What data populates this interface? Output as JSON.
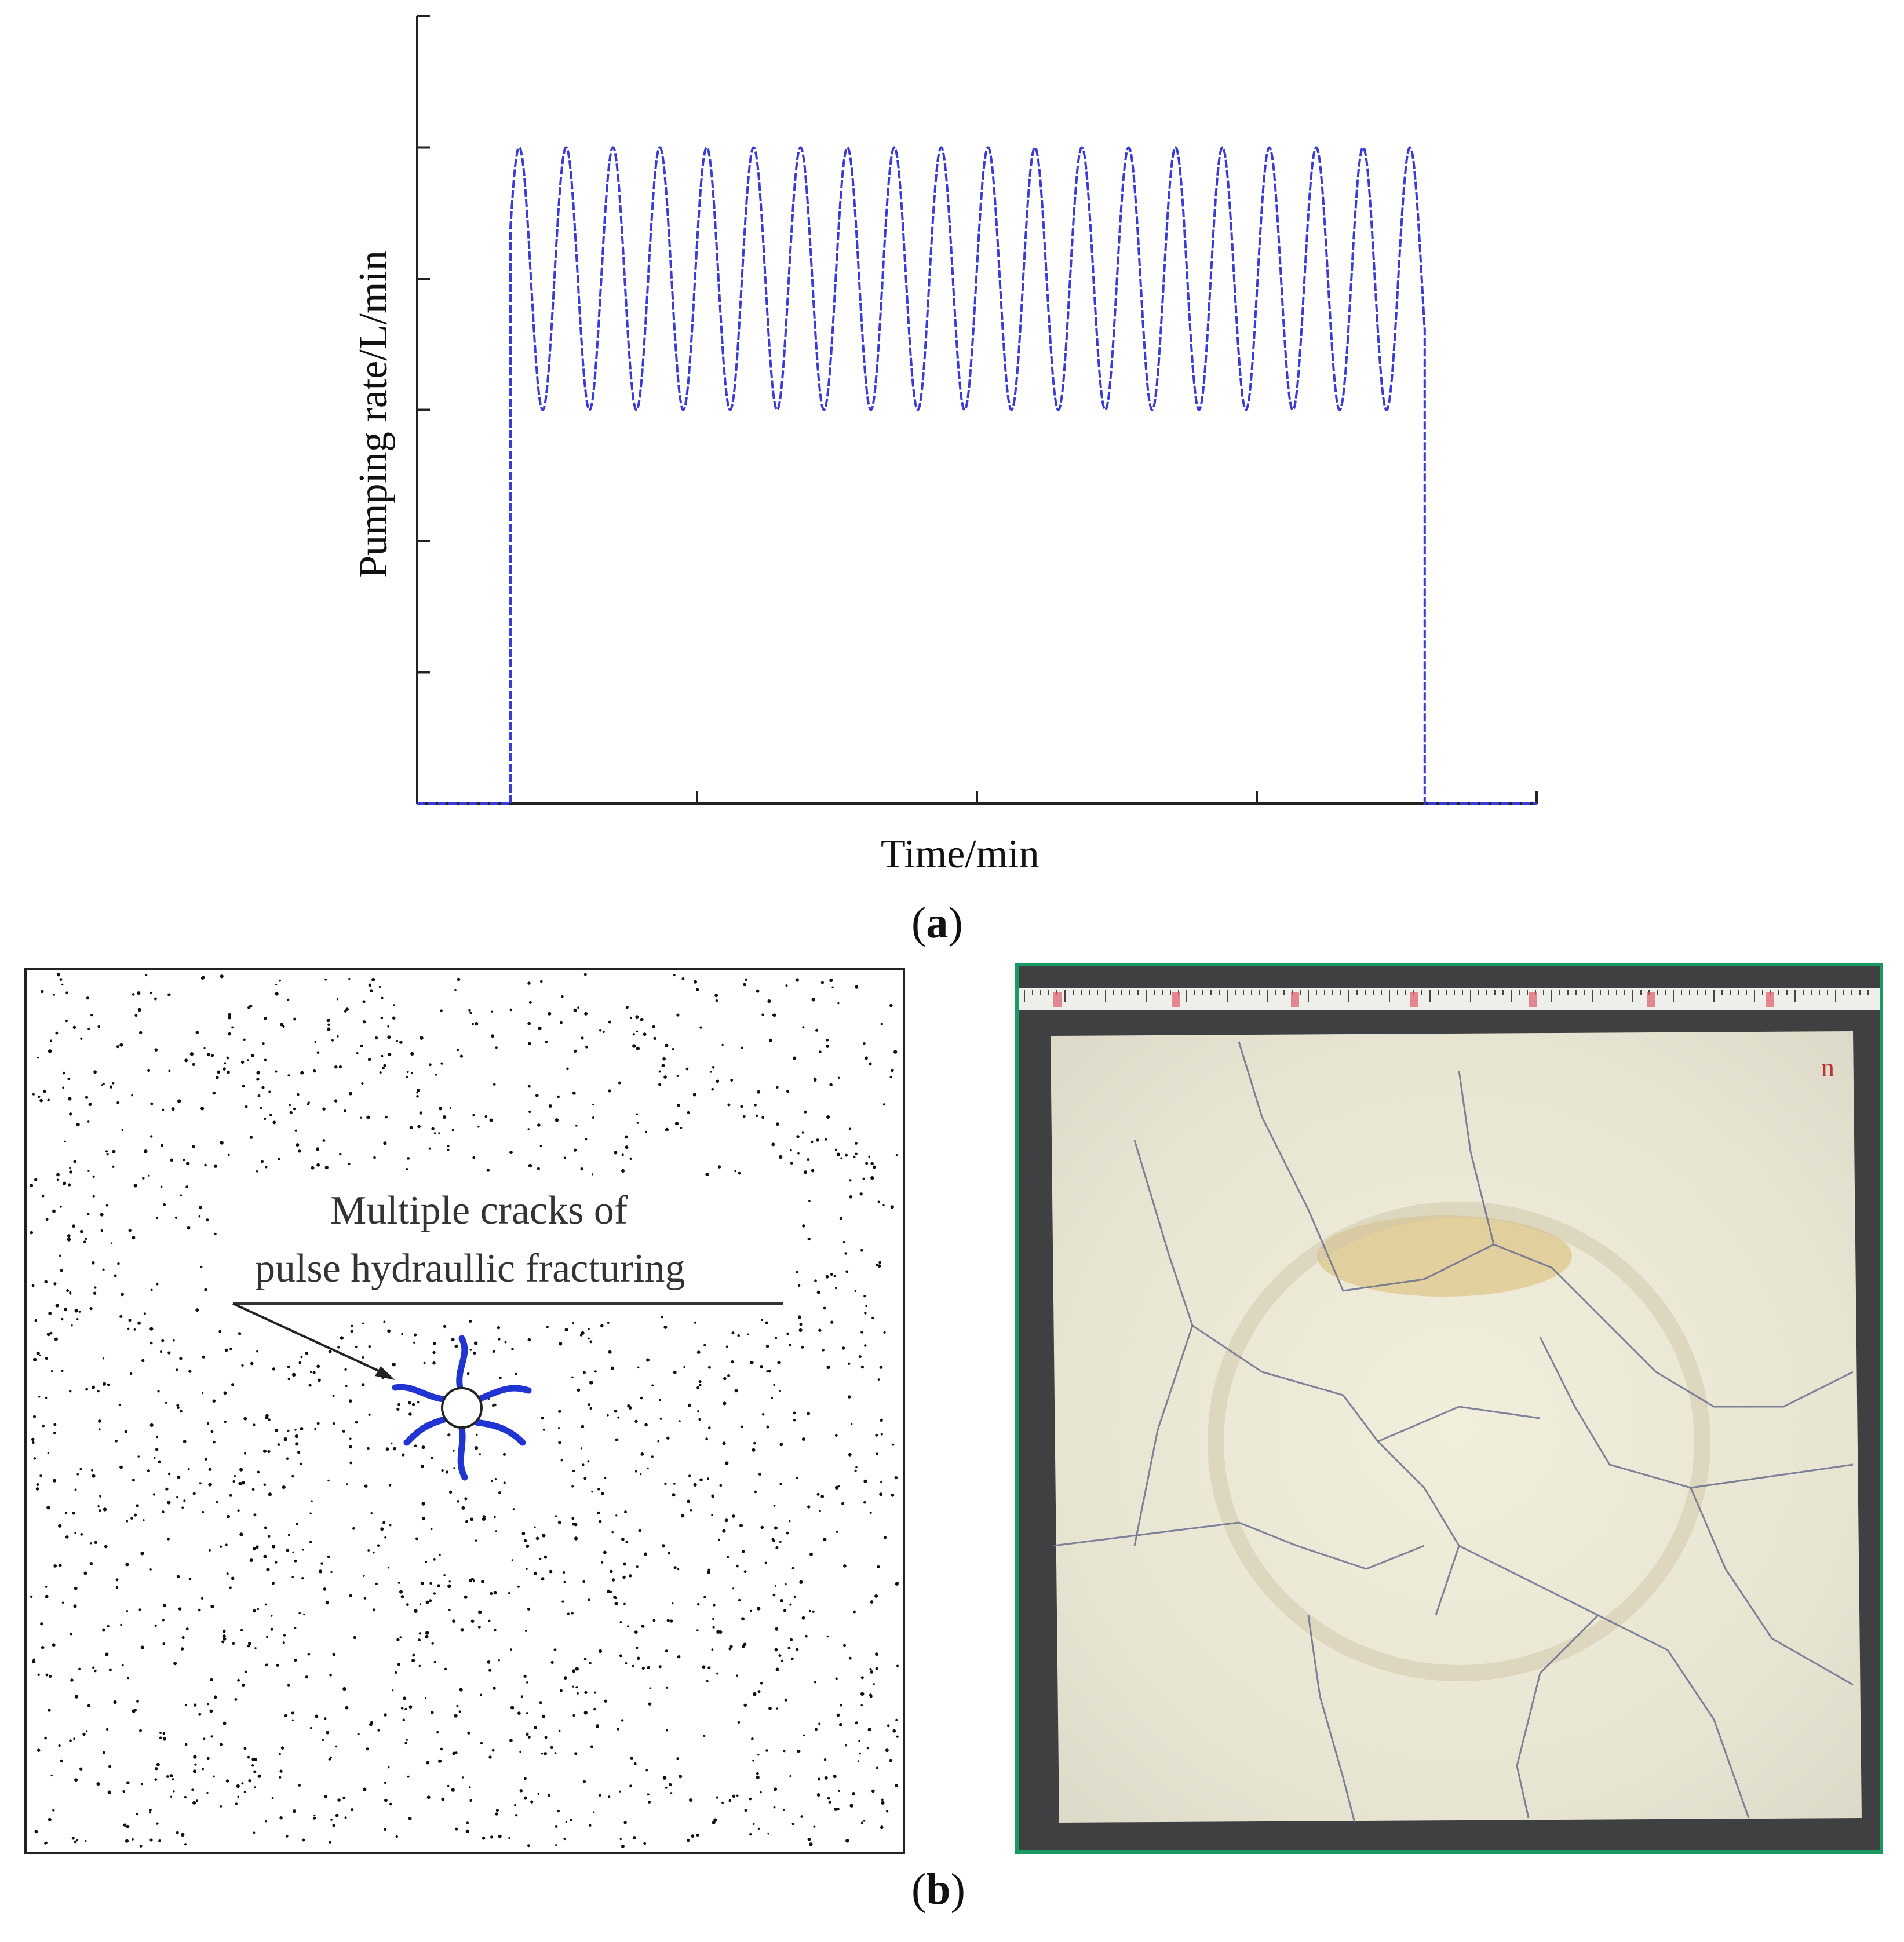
{
  "chart_data": {
    "type": "line",
    "title": "",
    "xlabel": "Time/min",
    "ylabel": "Pumping rate/L/min",
    "xlim": [
      0,
      12
    ],
    "ylim": [
      0,
      6
    ],
    "tick_labels_shown": false,
    "grid": false,
    "series": [
      {
        "color": "#3a3ad6",
        "description_points": {
          "start": 1.0,
          "end": 10.8,
          "baseline": 0,
          "min": 3,
          "max": 5,
          "cycles": 19.5
        }
      }
    ]
  },
  "captions": {
    "a_open": "(",
    "a_letter": "a",
    "a_close": ")",
    "b_open": "(",
    "b_letter": "b",
    "b_close": ")"
  },
  "diagram": {
    "annotation_line1": "Multiple cracks of",
    "annotation_line2": "pulse hydraullic fracturing",
    "crack_color": "#1f34d0"
  },
  "photo": {
    "border_color": "#1a9a63",
    "specimen_mark": "n"
  }
}
